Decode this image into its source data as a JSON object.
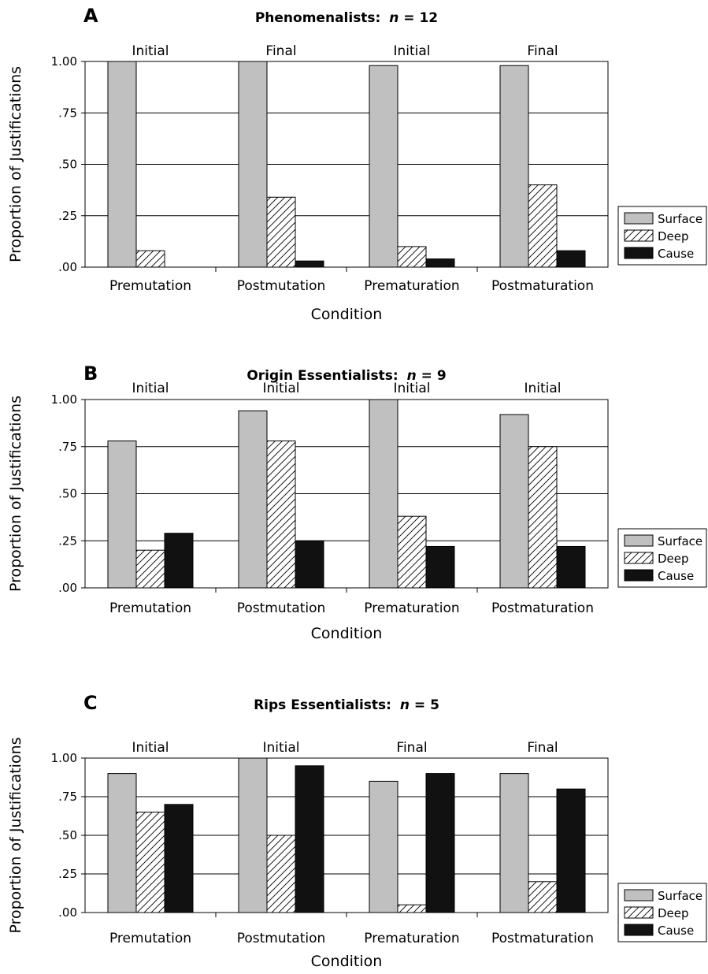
{
  "legend": {
    "items": [
      {
        "name": "Surface",
        "fill": "#c0c0c0"
      },
      {
        "name": "Deep",
        "fill": "hatch"
      },
      {
        "name": "Cause",
        "fill": "#111111"
      }
    ]
  },
  "chart_data": [
    {
      "type": "bar",
      "panel": "A",
      "title": "Phenomenalists: n = 12",
      "title_main": "Phenomenalists:",
      "title_n_symbol": "n",
      "title_n_rest": " = 12",
      "ylabel": "Proportion of Justifications",
      "xlabel": "Condition",
      "ylim": [
        0,
        1
      ],
      "yticks": [
        ".00",
        ".25",
        ".50",
        ".75",
        "1.00"
      ],
      "grid": true,
      "legend_position": "right",
      "categories": [
        "Premutation",
        "Postmutation",
        "Prematuration",
        "Postmaturation"
      ],
      "top_labels": [
        "Initial",
        "Final",
        "Initial",
        "Final"
      ],
      "series": [
        {
          "name": "Surface",
          "values": [
            1.0,
            1.0,
            0.98,
            0.98
          ]
        },
        {
          "name": "Deep",
          "values": [
            0.08,
            0.34,
            0.1,
            0.4
          ]
        },
        {
          "name": "Cause",
          "values": [
            0.0,
            0.03,
            0.04,
            0.08
          ]
        }
      ]
    },
    {
      "type": "bar",
      "panel": "B",
      "title": "Origin Essentialists: n = 9",
      "title_main": "Origin Essentialists:",
      "title_n_symbol": "n",
      "title_n_rest": " = 9",
      "ylabel": "Proportion of Justifications",
      "xlabel": "Condition",
      "ylim": [
        0,
        1
      ],
      "yticks": [
        ".00",
        ".25",
        ".50",
        ".75",
        "1.00"
      ],
      "grid": true,
      "legend_position": "right",
      "categories": [
        "Premutation",
        "Postmutation",
        "Prematuration",
        "Postmaturation"
      ],
      "top_labels": [
        "Initial",
        "Initial",
        "Initial",
        "Initial"
      ],
      "series": [
        {
          "name": "Surface",
          "values": [
            0.78,
            0.94,
            1.0,
            0.92
          ]
        },
        {
          "name": "Deep",
          "values": [
            0.2,
            0.78,
            0.38,
            0.75
          ]
        },
        {
          "name": "Cause",
          "values": [
            0.29,
            0.25,
            0.22,
            0.22
          ]
        }
      ]
    },
    {
      "type": "bar",
      "panel": "C",
      "title": "Rips Essentialists: n = 5",
      "title_main": "Rips Essentialists:",
      "title_n_symbol": "n",
      "title_n_rest": " = 5",
      "ylabel": "Proportion of Justifications",
      "xlabel": "Condition",
      "ylim": [
        0,
        1
      ],
      "yticks": [
        ".00",
        ".25",
        ".50",
        ".75",
        "1.00"
      ],
      "grid": true,
      "legend_position": "right",
      "categories": [
        "Premutation",
        "Postmutation",
        "Prematuration",
        "Postmaturation"
      ],
      "top_labels": [
        "Initial",
        "Initial",
        "Final",
        "Final"
      ],
      "series": [
        {
          "name": "Surface",
          "values": [
            0.9,
            1.0,
            0.85,
            0.9
          ]
        },
        {
          "name": "Deep",
          "values": [
            0.65,
            0.5,
            0.05,
            0.2
          ]
        },
        {
          "name": "Cause",
          "values": [
            0.7,
            0.95,
            0.9,
            0.8
          ]
        }
      ]
    }
  ]
}
